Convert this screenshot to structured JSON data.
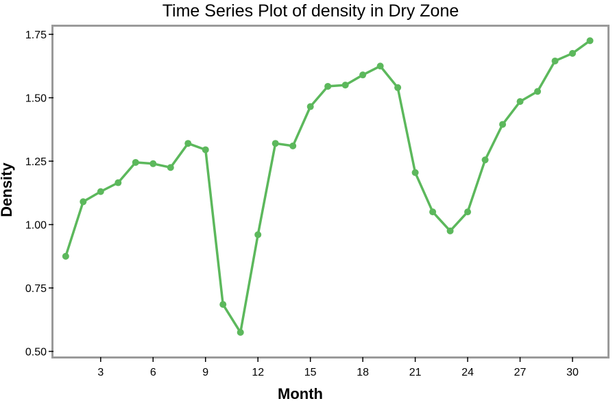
{
  "chart_data": {
    "type": "line",
    "title": "Time Series Plot of density in Dry Zone",
    "xlabel": "Month",
    "ylabel": "Density",
    "xlim": [
      0.3,
      32.0
    ],
    "ylim": [
      0.48,
      1.78
    ],
    "xticks": [
      3,
      6,
      9,
      12,
      15,
      18,
      21,
      24,
      27,
      30
    ],
    "xtick_labels": [
      "3",
      "6",
      "9",
      "12",
      "15",
      "18",
      "21",
      "24",
      "27",
      "30"
    ],
    "yticks": [
      0.5,
      0.75,
      1.0,
      1.25,
      1.5,
      1.75
    ],
    "ytick_labels": [
      "0.50",
      "0.75",
      "1.00",
      "1.25",
      "1.50",
      "1.75"
    ],
    "grid": false,
    "series": [
      {
        "color": "#5cb85c",
        "marker": "circle",
        "x": [
          1,
          2,
          3,
          4,
          5,
          6,
          7,
          8,
          9,
          10,
          11,
          12,
          13,
          14,
          15,
          16,
          17,
          18,
          19,
          20,
          21,
          22,
          23,
          24,
          25,
          26,
          27,
          28,
          29,
          30,
          31
        ],
        "y": [
          0.875,
          1.09,
          1.13,
          1.165,
          1.245,
          1.24,
          1.225,
          1.32,
          1.295,
          0.685,
          0.575,
          0.96,
          1.32,
          1.31,
          1.465,
          1.545,
          1.55,
          1.59,
          1.625,
          1.54,
          1.205,
          1.05,
          0.975,
          1.05,
          1.255,
          1.395,
          1.485,
          1.525,
          1.645,
          1.675,
          1.725
        ]
      }
    ]
  }
}
